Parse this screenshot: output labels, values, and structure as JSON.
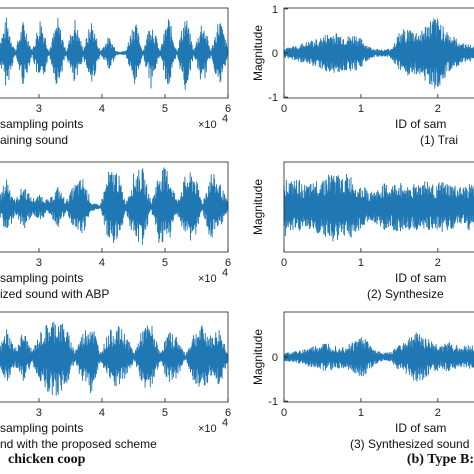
{
  "chart_data": [
    {
      "type": "line",
      "xlabel": "sampling points",
      "x_exponent": "×10",
      "x_exponent_power": "4",
      "caption": "aining sound",
      "x_ticks": [
        3,
        4,
        5,
        6
      ],
      "xlim": [
        2.35,
        6.0
      ],
      "ylim": [
        -1,
        1
      ],
      "color": "#1f77b4",
      "envelope": [
        0.1,
        0.85,
        0.05,
        0.8,
        0.05,
        0.9,
        0.05,
        0.85,
        0.05,
        0.85,
        0.1,
        0.8,
        0.05,
        0.4,
        0.05,
        0.05,
        0.85,
        0.05,
        0.85,
        0.05,
        0.9,
        0.05,
        0.95,
        0.05,
        0.85,
        0.05,
        0.9,
        0.1
      ]
    },
    {
      "type": "line",
      "xlabel": "sampling points",
      "x_exponent": "×10",
      "x_exponent_power": "4",
      "caption": "ized sound with ABP",
      "x_ticks": [
        3,
        4,
        5,
        6
      ],
      "xlim": [
        2.35,
        6.0
      ],
      "ylim": [
        -1,
        1
      ],
      "color": "#1f77b4",
      "envelope": [
        0.1,
        0.75,
        0.15,
        0.55,
        0.2,
        0.3,
        0.15,
        0.5,
        0.15,
        0.55,
        0.7,
        0.1,
        0.05,
        0.85,
        0.9,
        0.1,
        0.85,
        0.9,
        0.1,
        0.95,
        0.9,
        0.15,
        0.75,
        0.85,
        0.1,
        0.85,
        0.6,
        0.1
      ]
    },
    {
      "type": "line",
      "xlabel": "sampling points",
      "x_exponent": "×10",
      "x_exponent_power": "4",
      "caption": "nd with the proposed scheme",
      "x_ticks": [
        3,
        4,
        5,
        6
      ],
      "xlim": [
        2.35,
        6.0
      ],
      "ylim": [
        -1,
        1
      ],
      "color": "#1f77b4",
      "envelope": [
        0.1,
        0.7,
        0.2,
        0.65,
        0.15,
        0.6,
        0.85,
        0.95,
        0.7,
        0.15,
        0.6,
        0.9,
        0.1,
        0.6,
        0.75,
        0.55,
        0.1,
        0.7,
        0.8,
        0.1,
        0.6,
        0.5,
        0.05,
        0.6,
        0.75,
        0.5,
        0.7,
        0.1
      ]
    },
    {
      "type": "line",
      "xlabel": "ID of sam",
      "ylabel": "Magnitude",
      "caption": "(1) Trai",
      "y_ticks": [
        -1,
        0,
        1
      ],
      "x_ticks": [
        0,
        1,
        2
      ],
      "xlim": [
        0,
        2.6
      ],
      "ylim": [
        -1,
        1
      ],
      "color": "#1f77b4",
      "envelope": [
        0.1,
        0.15,
        0.2,
        0.25,
        0.3,
        0.35,
        0.45,
        0.5,
        0.45,
        0.4,
        0.45,
        0.3,
        0.15,
        0.1,
        0.08,
        0.12,
        0.45,
        0.6,
        0.55,
        0.5,
        0.7,
        0.85,
        0.75,
        0.5,
        0.35,
        0.25,
        0.2,
        0.15,
        0.1
      ]
    },
    {
      "type": "line",
      "ylabel": "Magnitude",
      "xlabel": "ID of sam",
      "caption": "(2) Synthesize",
      "x_ticks": [
        0,
        1,
        2
      ],
      "xlim": [
        0,
        2.6
      ],
      "ylim": [
        -1,
        1
      ],
      "color": "#1f77b4",
      "envelope": [
        0.7,
        0.6,
        0.65,
        0.5,
        0.55,
        0.7,
        0.75,
        0.85,
        0.7,
        0.8,
        0.6,
        0.5,
        0.35,
        0.4,
        0.55,
        0.5,
        0.6,
        0.5,
        0.55,
        0.6,
        0.65,
        0.5,
        0.6,
        0.55,
        0.5,
        0.45,
        0.55,
        0.5,
        0.4
      ]
    },
    {
      "type": "line",
      "ylabel": "Magnitude",
      "xlabel": "ID of sam",
      "caption": "(3) Synthesized sound",
      "y_ticks": [
        -1,
        0
      ],
      "x_ticks": [
        0,
        1,
        2
      ],
      "xlim": [
        0,
        2.6
      ],
      "ylim": [
        -1,
        1
      ],
      "color": "#1f77b4",
      "envelope": [
        0.1,
        0.12,
        0.15,
        0.2,
        0.25,
        0.3,
        0.35,
        0.3,
        0.25,
        0.3,
        0.4,
        0.55,
        0.3,
        0.15,
        0.1,
        0.12,
        0.3,
        0.4,
        0.55,
        0.6,
        0.45,
        0.35,
        0.3,
        0.35,
        0.3,
        0.25,
        0.3,
        0.25,
        0.2
      ]
    }
  ],
  "footer": {
    "left_title": "chicken coop",
    "right_title": "(b) Type B:"
  }
}
